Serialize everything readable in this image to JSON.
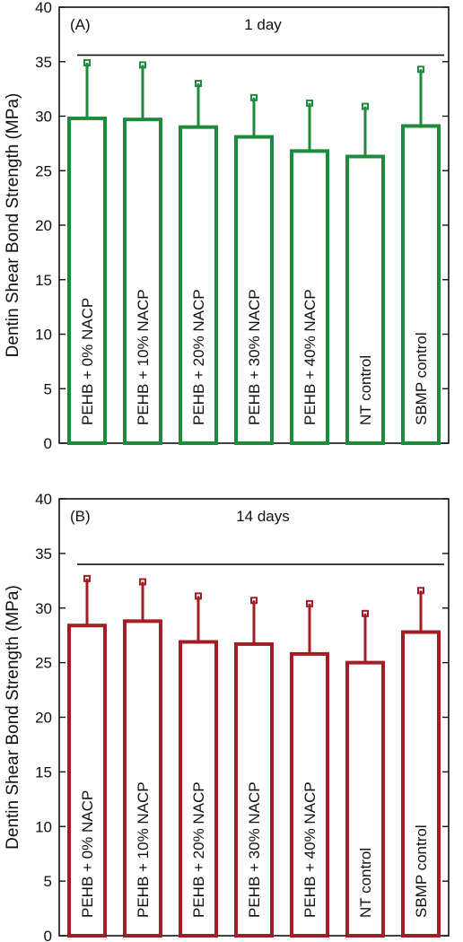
{
  "chart_data": [
    {
      "type": "bar",
      "panel_label": "(A)",
      "title": "1 day",
      "ylabel": "Dentin Shear Bond Strength (MPa)",
      "xlabel": "",
      "ylim": [
        0,
        40
      ],
      "yticks": [
        0,
        5,
        10,
        15,
        20,
        25,
        30,
        35,
        40
      ],
      "categories": [
        "PEHB + 0% NACP",
        "PEHB + 10% NACP",
        "PEHB + 20% NACP",
        "PEHB + 30% NACP",
        "PEHB + 40% NACP",
        "NT control",
        "SBMP control"
      ],
      "values": [
        29.8,
        29.7,
        29.0,
        28.1,
        26.8,
        26.3,
        29.1
      ],
      "error": [
        5.1,
        5.0,
        4.0,
        3.6,
        4.4,
        4.6,
        5.2
      ],
      "significance_line_y": 35.6,
      "bar_style": "outline",
      "color": "#1e8a3c",
      "grid": false,
      "legend": "none"
    },
    {
      "type": "bar",
      "panel_label": "(B)",
      "title": "14 days",
      "ylabel": "Dentin Shear Bond Strength (MPa)",
      "xlabel": "",
      "ylim": [
        0,
        40
      ],
      "yticks": [
        0,
        5,
        10,
        15,
        20,
        25,
        30,
        35,
        40
      ],
      "categories": [
        "PEHB + 0% NACP",
        "PEHB + 10% NACP",
        "PEHB + 20% NACP",
        "PEHB + 30% NACP",
        "PEHB + 40% NACP",
        "NT control",
        "SBMP control"
      ],
      "values": [
        28.4,
        28.8,
        26.9,
        26.7,
        25.8,
        25.0,
        27.8
      ],
      "error": [
        4.3,
        3.6,
        4.2,
        4.0,
        4.6,
        4.5,
        3.8
      ],
      "significance_line_y": 34.0,
      "bar_style": "outline",
      "color": "#a31d25",
      "grid": false,
      "legend": "none"
    }
  ]
}
